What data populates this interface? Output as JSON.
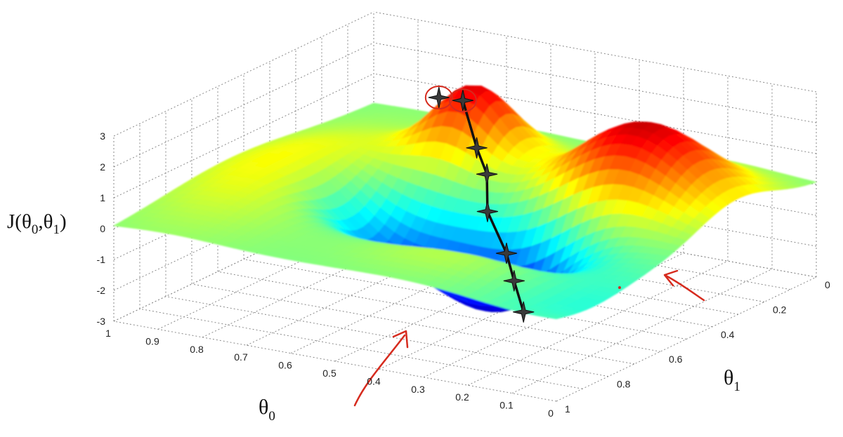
{
  "chart_data": {
    "type": "surface",
    "xlabel": {
      "main": "θ",
      "sub": "0"
    },
    "ylabel": {
      "main": "θ",
      "sub": "1"
    },
    "zlabel": {
      "prefix": "J(θ",
      "sub0": "0",
      "mid": ",θ",
      "sub1": "1",
      "suffix": ")"
    },
    "xlim": [
      0,
      1
    ],
    "ylim": [
      0,
      1
    ],
    "zlim": [
      -3,
      3
    ],
    "x_ticks": [
      "1",
      "0.9",
      "0.8",
      "0.7",
      "0.6",
      "0.5",
      "0.4",
      "0.3",
      "0.2",
      "0.1",
      "0"
    ],
    "y_ticks": [
      "0",
      "0.2",
      "0.4",
      "0.6",
      "0.8",
      "1"
    ],
    "z_ticks": [
      "3",
      "2",
      "1",
      "0",
      "-1",
      "-2",
      "-3"
    ],
    "grid": true,
    "colormap": "jet",
    "path": [
      {
        "x": 0.64,
        "y": 0.27,
        "z": 2.15
      },
      {
        "x": 0.55,
        "y": 0.37,
        "z": 1.25
      },
      {
        "x": 0.48,
        "y": 0.45,
        "z": 0.9
      },
      {
        "x": 0.42,
        "y": 0.55,
        "z": 0.25
      },
      {
        "x": 0.33,
        "y": 0.63,
        "z": -0.55
      },
      {
        "x": 0.26,
        "y": 0.72,
        "z": -0.9
      },
      {
        "x": 0.18,
        "y": 0.82,
        "z": -1.3
      }
    ],
    "circled_points": [
      {
        "x": 0.7,
        "y": 0.26,
        "z": 2.05
      },
      {
        "x": 0.64,
        "y": 0.27,
        "z": 2.15
      }
    ],
    "annotation_color": "#d62b1e",
    "path_color": "#111111"
  }
}
